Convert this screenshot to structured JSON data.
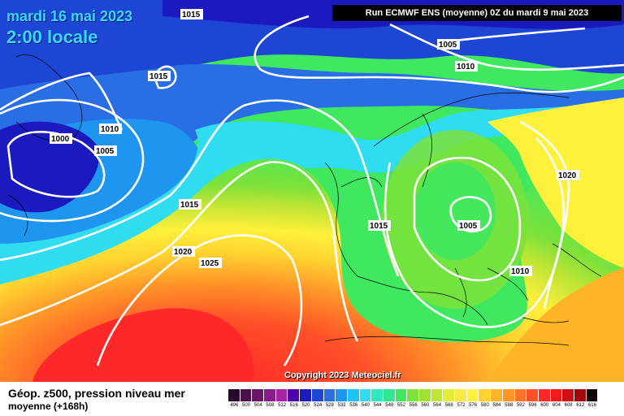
{
  "header": {
    "date": "mardi 16 mai 2023",
    "time": "2:00 locale",
    "run": "Run ECMWF ENS (moyenne) 0Z du mardi 9 mai 2023"
  },
  "copyright": "Copyright 2023 Meteociel.fr",
  "footer": {
    "title": "Géop. z500, pression niveau mer",
    "subtitle": "moyenne   (+168h)"
  },
  "legend": {
    "labels": [
      "496",
      "500",
      "504",
      "508",
      "512",
      "516",
      "520",
      "524",
      "528",
      "532",
      "536",
      "540",
      "544",
      "548",
      "552",
      "556",
      "560",
      "564",
      "568",
      "572",
      "576",
      "580",
      "584",
      "588",
      "592",
      "596",
      "600",
      "604",
      "608",
      "612",
      "616"
    ],
    "colors": [
      "#2a0a2a",
      "#4a1048",
      "#6a1668",
      "#8a1c8a",
      "#a822a6",
      "#5000aa",
      "#1a1abf",
      "#1e46d4",
      "#2a6ee6",
      "#1e96f0",
      "#1ec2f4",
      "#30dcf0",
      "#30e8c0",
      "#30e890",
      "#40e860",
      "#7de23a",
      "#a0e030",
      "#c0e434",
      "#e4ec3a",
      "#fae848",
      "#fff03c",
      "#ffd230",
      "#ffb428",
      "#ff9428",
      "#ff7428",
      "#ff5028",
      "#ff2828",
      "#f01a1a",
      "#d01010",
      "#a00808",
      "#100808"
    ]
  },
  "isobars": [
    {
      "value": "1015",
      "label": "1015"
    },
    {
      "value": "1015",
      "label": "1015"
    },
    {
      "value": "1010",
      "label": "1010"
    },
    {
      "value": "1000",
      "label": "1000"
    },
    {
      "value": "1005",
      "label": "1005"
    },
    {
      "value": "1015",
      "label": "1015"
    },
    {
      "value": "1020",
      "label": "1020"
    },
    {
      "value": "1025",
      "label": "1025"
    },
    {
      "value": "1005",
      "label": "1005"
    },
    {
      "value": "1010",
      "label": "1010"
    },
    {
      "value": "1015",
      "label": "1015"
    },
    {
      "value": "1005",
      "label": "1005"
    },
    {
      "value": "1020",
      "label": "1020"
    },
    {
      "value": "1010",
      "label": "1010"
    }
  ]
}
